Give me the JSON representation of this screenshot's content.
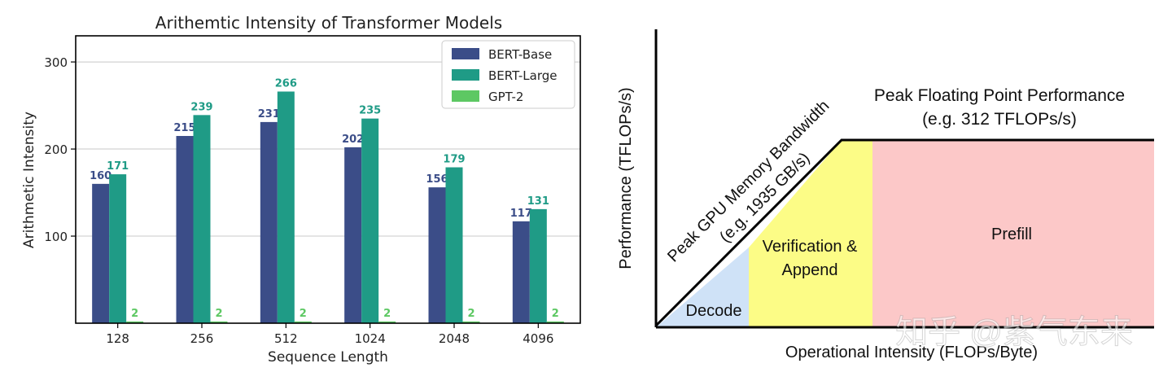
{
  "chart_data": [
    {
      "type": "bar",
      "title": "Arithemtic Intensity of Transformer Models",
      "xlabel": "Sequence Length",
      "ylabel": "Arithmetic Intensity",
      "categories": [
        "128",
        "256",
        "512",
        "1024",
        "2048",
        "4096"
      ],
      "series": [
        {
          "name": "BERT-Base",
          "color": "#3b4d88",
          "values": [
            160,
            215,
            231,
            202,
            156,
            117
          ]
        },
        {
          "name": "BERT-Large",
          "color": "#1f9b86",
          "values": [
            171,
            239,
            266,
            235,
            179,
            131
          ]
        },
        {
          "name": "GPT-2",
          "color": "#5dc863",
          "values": [
            2,
            2,
            2,
            2,
            2,
            2
          ]
        }
      ],
      "ylim": [
        0,
        330
      ],
      "yticks": [
        100,
        200,
        300
      ],
      "grid": "horizontal",
      "legend": "top-right"
    },
    {
      "type": "area",
      "xlabel": "Operational Intensity (FLOPs/Byte)",
      "ylabel": "Performance (TFLOPs/s)",
      "slope_label": [
        "Peak GPU Memory Bandwidth",
        "(e.g. 1935 GB/s)"
      ],
      "roof_label": [
        "Peak Floating Point Performance",
        "(e.g. 312 TFLOPs/s)"
      ],
      "regions": [
        {
          "label": [
            "Decode"
          ],
          "color": "#cfe2f7"
        },
        {
          "label": [
            "Verification &",
            "Append"
          ],
          "color": "#fcfc86"
        },
        {
          "label": [
            "Prefill"
          ],
          "color": "#fcc8c8"
        }
      ],
      "watermark": "知乎 @紫气东来"
    }
  ]
}
